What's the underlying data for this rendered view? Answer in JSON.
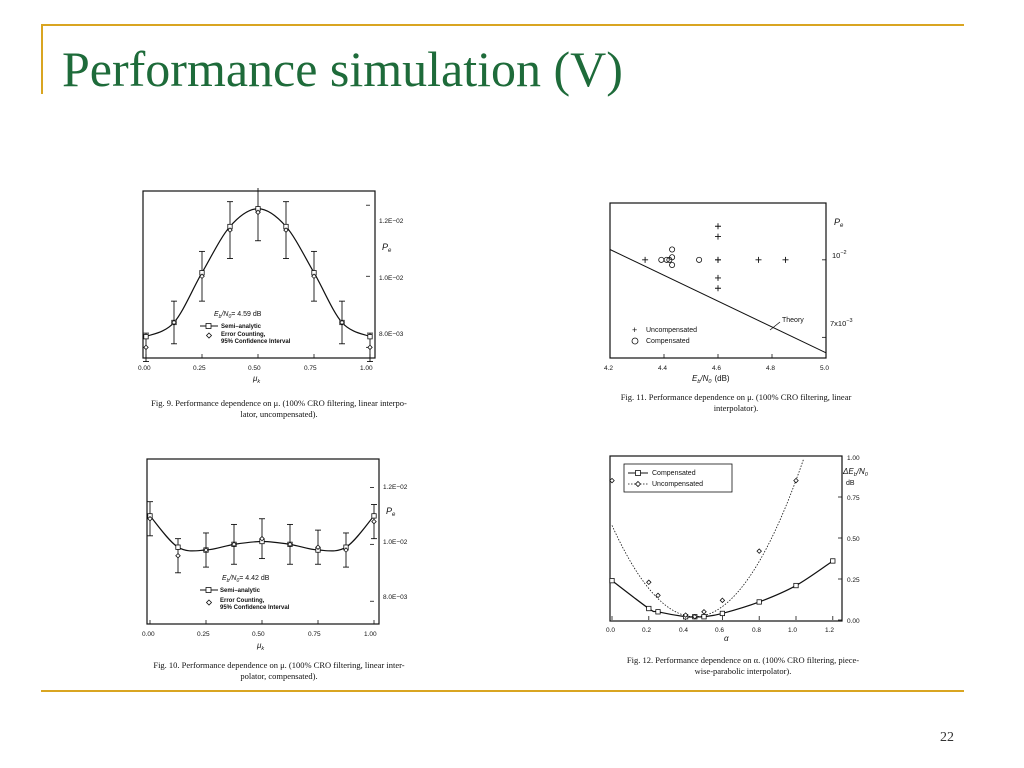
{
  "slide": {
    "title": "Performance simulation (V)",
    "page_number": "22",
    "accent_color": "#d9a521",
    "title_color": "#1e6b3a"
  },
  "figures": {
    "fig9": {
      "caption_line1": "Fig. 9.   Performance dependence on μ. (100% CRO filtering, linear interpo-",
      "caption_line2": "lator, uncompensated).",
      "legend_eb": "E",
      "legend_eb_value": "= 4.59  dB",
      "legend_semi": "Semi–analytic",
      "legend_err1": "Error Counting,",
      "legend_err2": "95% Confidence Interval",
      "ylabel": "P",
      "xlabel": "μ"
    },
    "fig10": {
      "caption_line1": "Fig. 10.   Performance dependence on μ. (100% CRO filtering, linear inter-",
      "caption_line2": "polator, compensated).",
      "legend_eb_value": "= 4.42  dB",
      "legend_semi": "Semi–analytic",
      "legend_err1": "Error Counting,",
      "legend_err2": "95% Confidence Interval",
      "ylabel": "P",
      "xlabel": "μ"
    },
    "fig11": {
      "caption_line1": "Fig.  11.   Performance  dependence  on  μ.  (100%  CRO  filtering,  linear",
      "caption_line2": "interpolator).",
      "legend_unc": "Uncompensated",
      "legend_comp": "Compensated",
      "theory_label": "Theory",
      "ylabel": "P",
      "xlabel": "(dB)"
    },
    "fig12": {
      "caption_line1": "Fig.  12.   Performance  dependence  on  α.  (100%  CRO  filtering,  piece-",
      "caption_line2": "wise-parabolic interpolator).",
      "legend_comp": "Compensated",
      "legend_unc": "Uncompensated",
      "ylabel_unit": "dB",
      "xlabel": "α"
    }
  },
  "chart_data": [
    {
      "type": "line",
      "id": "fig9",
      "x": [
        0,
        0.125,
        0.25,
        0.375,
        0.5,
        0.625,
        0.75,
        0.875,
        1.0
      ],
      "series": [
        {
          "name": "Semi–analytic",
          "values": [
            0.0083,
            0.0087,
            0.0101,
            0.0114,
            0.0119,
            0.0114,
            0.0101,
            0.0087,
            0.0083
          ]
        },
        {
          "name": "Error Counting, 95% Confidence Interval",
          "values": [
            0.008,
            0.0087,
            0.01,
            0.0113,
            0.0118,
            0.0113,
            0.01,
            0.0087,
            0.008
          ],
          "err": [
            0.0004,
            0.0006,
            0.0007,
            0.0008,
            0.0008,
            0.0008,
            0.0007,
            0.0006,
            0.0004
          ]
        }
      ],
      "xticks": [
        "0.00",
        "0.25",
        "0.50",
        "0.75",
        "1.00"
      ],
      "yticks": [
        "8.0E−03",
        "1.0E−02",
        "1.2E−02"
      ],
      "xlim": [
        0,
        1
      ],
      "ylim": [
        0.0077,
        0.0124
      ]
    },
    {
      "type": "line",
      "id": "fig10",
      "x": [
        0,
        0.125,
        0.25,
        0.375,
        0.5,
        0.625,
        0.75,
        0.875,
        1.0
      ],
      "series": [
        {
          "name": "Semi–analytic",
          "values": [
            0.011,
            0.0099,
            0.0098,
            0.01,
            0.0101,
            0.01,
            0.0098,
            0.0099,
            0.011
          ]
        },
        {
          "name": "Error Counting, 95% Confidence Interval",
          "values": [
            0.0109,
            0.0096,
            0.0098,
            0.01,
            0.0102,
            0.01,
            0.0099,
            0.0098,
            0.0108
          ],
          "err": [
            0.0006,
            0.0006,
            0.0006,
            0.0007,
            0.0007,
            0.0007,
            0.0006,
            0.0006,
            0.0006
          ]
        }
      ],
      "xticks": [
        "0.00",
        "0.25",
        "0.50",
        "0.75",
        "1.00"
      ],
      "yticks": [
        "8.0E−03",
        "1.0E−02",
        "1.2E−02"
      ],
      "xlim": [
        0,
        1
      ],
      "ylim": [
        0.0072,
        0.013
      ]
    },
    {
      "type": "scatter",
      "id": "fig11",
      "xticks": [
        "4.2",
        "4.4",
        "4.6",
        "4.8",
        "5.0"
      ],
      "yticks": [
        "10⁻²",
        "7x10⁻³"
      ],
      "xlim": [
        4.2,
        5.0
      ],
      "series": [
        {
          "name": "Uncompensated",
          "x": [
            4.33,
            4.6,
            4.6,
            4.6,
            4.6,
            4.6,
            4.6,
            4.75,
            4.85
          ],
          "y": [
            0.01,
            0.0113,
            0.0109,
            0.01,
            0.0093,
            0.0089,
            0.01,
            0.01,
            0.01
          ]
        },
        {
          "name": "Compensated",
          "x": [
            4.39,
            4.41,
            4.42,
            4.43,
            4.43,
            4.43,
            4.53
          ],
          "y": [
            0.01,
            0.01,
            0.01,
            0.0104,
            0.0101,
            0.0098,
            0.01
          ]
        },
        {
          "name": "Theory",
          "x": [
            4.2,
            5.0
          ],
          "y": [
            0.0104,
            0.0064
          ]
        }
      ]
    },
    {
      "type": "line",
      "id": "fig12",
      "xticks": [
        "0.0",
        "0.2",
        "0.4",
        "0.6",
        "0.8",
        "1.0",
        "1.2"
      ],
      "yticks": [
        "0.00",
        "0.25",
        "0.50",
        "0.75",
        "1.00"
      ],
      "xlim": [
        0,
        1.25
      ],
      "ylim": [
        0,
        1.0
      ],
      "series": [
        {
          "name": "Compensated",
          "x": [
            0.0,
            0.2,
            0.25,
            0.4,
            0.45,
            0.5,
            0.6,
            0.8,
            1.0,
            1.2
          ],
          "values": [
            0.24,
            0.07,
            0.05,
            0.02,
            0.02,
            0.02,
            0.04,
            0.11,
            0.21,
            0.36
          ]
        },
        {
          "name": "Uncompensated",
          "x": [
            0.0,
            0.2,
            0.25,
            0.4,
            0.45,
            0.5,
            0.6,
            0.8,
            1.0
          ],
          "values": [
            0.85,
            0.23,
            0.15,
            0.03,
            0.02,
            0.05,
            0.12,
            0.42,
            0.85
          ]
        }
      ]
    }
  ]
}
